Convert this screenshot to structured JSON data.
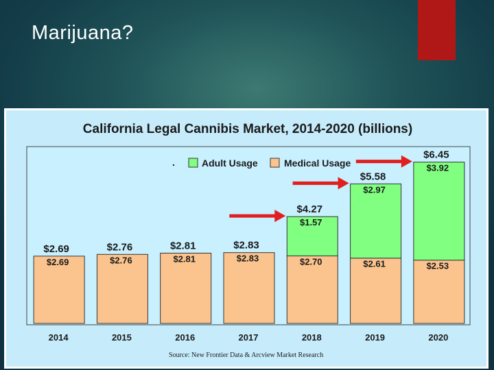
{
  "slide": {
    "title": "Marijuana?"
  },
  "colors": {
    "accent_bar": "#b01818",
    "chart_background": "#c6ecfb",
    "adult_fill": "#80ff80",
    "medical_fill": "#fbc48e",
    "arrow": "#e02020"
  },
  "chart_data": {
    "type": "bar",
    "stacked": true,
    "title": "California Legal Cannibis Market, 2014-2020 (billions)",
    "categories": [
      "2014",
      "2015",
      "2016",
      "2017",
      "2018",
      "2019",
      "2020"
    ],
    "series": [
      {
        "name": "Medical Usage",
        "values": [
          2.69,
          2.76,
          2.81,
          2.83,
          2.7,
          2.61,
          2.53
        ],
        "labels": [
          "$2.69",
          "$2.76",
          "$2.81",
          "$2.83",
          "$2.70",
          "$2.61",
          "$2.53"
        ]
      },
      {
        "name": "Adult Usage",
        "values": [
          0,
          0,
          0,
          0,
          1.57,
          2.97,
          3.92
        ],
        "labels": [
          "",
          "",
          "",
          "",
          "$1.57",
          "$2.97",
          "$3.92"
        ]
      }
    ],
    "totals": [
      2.69,
      2.76,
      2.81,
      2.83,
      4.27,
      5.58,
      6.45
    ],
    "total_labels": [
      "$2.69",
      "$2.76",
      "$2.81",
      "$2.83",
      "$4.27",
      "$5.58",
      "$6.45"
    ],
    "legend": [
      "Adult Usage",
      "Medical Usage"
    ],
    "legend_prefix": ".",
    "legend_position": "top-center",
    "arrows_at_categories": [
      "2018",
      "2019",
      "2020"
    ],
    "ylim": [
      0,
      7
    ],
    "xlabel": "",
    "ylabel": "",
    "grid": false,
    "source": "Source: New Frontier Data & Arcview Market Research"
  }
}
